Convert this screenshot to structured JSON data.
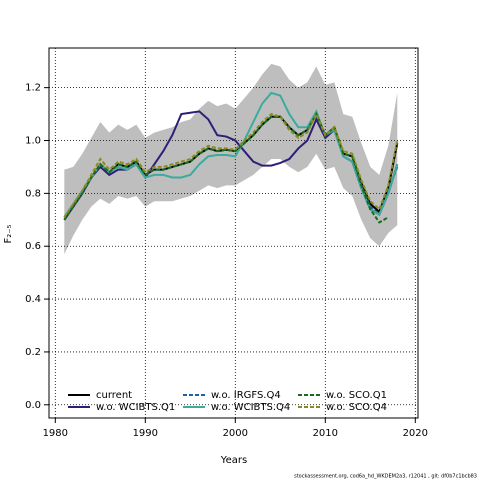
{
  "chart_data": {
    "type": "line",
    "x_label": "Years",
    "y_label": "F₂₋₅",
    "footer": "stockassessment.org, cod6a_hd_WKDEM2a3, r12041 , git: df0b7c1bcb83",
    "x": [
      1981,
      1982,
      1983,
      1984,
      1985,
      1986,
      1987,
      1988,
      1989,
      1990,
      1991,
      1992,
      1993,
      1994,
      1995,
      1996,
      1997,
      1998,
      1999,
      2000,
      2001,
      2002,
      2003,
      2004,
      2005,
      2006,
      2007,
      2008,
      2009,
      2010,
      2011,
      2012,
      2013,
      2014,
      2015,
      2016,
      2017,
      2018
    ],
    "band": {
      "color": "#bebebe",
      "upper": [
        0.89,
        0.9,
        0.95,
        1.01,
        1.07,
        1.03,
        1.06,
        1.04,
        1.06,
        1.01,
        1.03,
        1.04,
        1.05,
        1.07,
        1.08,
        1.12,
        1.15,
        1.13,
        1.14,
        1.12,
        1.16,
        1.2,
        1.25,
        1.29,
        1.28,
        1.23,
        1.2,
        1.22,
        1.28,
        1.21,
        1.22,
        1.1,
        1.09,
        0.99,
        0.9,
        0.87,
        0.98,
        1.18
      ],
      "lower": [
        0.57,
        0.64,
        0.7,
        0.75,
        0.78,
        0.76,
        0.79,
        0.78,
        0.79,
        0.75,
        0.77,
        0.77,
        0.77,
        0.78,
        0.79,
        0.81,
        0.83,
        0.82,
        0.83,
        0.83,
        0.85,
        0.87,
        0.9,
        0.93,
        0.93,
        0.9,
        0.88,
        0.9,
        0.95,
        0.89,
        0.9,
        0.82,
        0.79,
        0.7,
        0.63,
        0.6,
        0.65,
        0.68
      ]
    },
    "series": [
      {
        "name": "current",
        "color": "#000000",
        "linestyle": "solid",
        "values": [
          0.7,
          0.75,
          0.8,
          0.86,
          0.91,
          0.88,
          0.91,
          0.9,
          0.92,
          0.87,
          0.89,
          0.89,
          0.9,
          0.91,
          0.92,
          0.95,
          0.97,
          0.96,
          0.965,
          0.96,
          0.99,
          1.02,
          1.06,
          1.09,
          1.09,
          1.05,
          1.02,
          1.04,
          1.1,
          1.02,
          1.05,
          0.95,
          0.94,
          0.84,
          0.76,
          0.73,
          0.82,
          0.99
        ]
      },
      {
        "name": "w.o. WCIBTS.Q1",
        "color": "#2e1e78",
        "linestyle": "solid",
        "values": [
          0.7,
          0.75,
          0.8,
          0.86,
          0.9,
          0.87,
          0.89,
          0.89,
          0.91,
          0.86,
          0.91,
          0.96,
          1.02,
          1.1,
          1.105,
          1.11,
          1.08,
          1.02,
          1.015,
          1.0,
          0.96,
          0.92,
          0.905,
          0.905,
          0.915,
          0.93,
          0.97,
          1.0,
          1.08,
          1.01,
          1.04,
          0.94,
          0.92,
          0.82,
          0.74,
          0.72,
          0.8,
          0.91
        ]
      },
      {
        "name": "w.o. IRGFS.Q4",
        "color": "#1f5fa6",
        "linestyle": "dashed",
        "values": [
          0.7,
          0.75,
          0.8,
          0.86,
          0.91,
          0.88,
          0.91,
          0.9,
          0.92,
          0.87,
          0.89,
          0.89,
          0.9,
          0.91,
          0.92,
          0.95,
          0.97,
          0.96,
          0.965,
          0.96,
          0.99,
          1.02,
          1.06,
          1.09,
          1.09,
          1.05,
          1.02,
          1.04,
          1.1,
          1.02,
          1.05,
          0.95,
          0.94,
          0.83,
          0.75,
          0.72,
          0.81,
          0.9
        ]
      },
      {
        "name": "w.o. WCIBTS.Q4",
        "color": "#3aab9c",
        "linestyle": "solid",
        "values": [
          0.71,
          0.76,
          0.81,
          0.86,
          0.91,
          0.88,
          0.9,
          0.89,
          0.91,
          0.86,
          0.87,
          0.87,
          0.86,
          0.86,
          0.87,
          0.91,
          0.94,
          0.945,
          0.945,
          0.94,
          1.0,
          1.07,
          1.14,
          1.18,
          1.17,
          1.1,
          1.05,
          1.05,
          1.11,
          1.02,
          1.04,
          0.94,
          0.92,
          0.82,
          0.74,
          0.72,
          0.8,
          0.91
        ]
      },
      {
        "name": "w.o. SCO.Q1",
        "color": "#1a6b1a",
        "linestyle": "dashed",
        "values": [
          0.7,
          0.75,
          0.8,
          0.86,
          0.91,
          0.88,
          0.91,
          0.9,
          0.92,
          0.87,
          0.89,
          0.89,
          0.9,
          0.91,
          0.92,
          0.95,
          0.97,
          0.96,
          0.965,
          0.96,
          0.99,
          1.02,
          1.06,
          1.09,
          1.09,
          1.05,
          1.02,
          1.04,
          1.1,
          1.02,
          1.05,
          0.95,
          0.94,
          0.83,
          0.74,
          0.69,
          0.71,
          null
        ]
      },
      {
        "name": "w.o. SCO.Q4",
        "color": "#8c8c1e",
        "linestyle": "dashed",
        "values": [
          0.71,
          0.76,
          0.81,
          0.87,
          0.93,
          0.89,
          0.92,
          0.91,
          0.93,
          0.88,
          0.9,
          0.9,
          0.91,
          0.92,
          0.93,
          0.96,
          0.98,
          0.97,
          0.97,
          0.965,
          1.0,
          1.03,
          1.07,
          1.1,
          1.09,
          1.04,
          1.01,
          1.03,
          1.1,
          1.02,
          1.05,
          0.96,
          0.95,
          0.85,
          0.77,
          0.74,
          0.83,
          1.0
        ]
      }
    ],
    "xlim": [
      1979.3,
      2020.3
    ],
    "ylim": [
      -0.05,
      1.35
    ],
    "xticks": [
      1980,
      1990,
      2000,
      2010,
      2020
    ],
    "yticks": [
      {
        "value": 0,
        "label": "0.0"
      },
      {
        "value": 0.2,
        "label": "0.2"
      },
      {
        "value": 0.4,
        "label": "0.4"
      },
      {
        "value": 0.6,
        "label": "0.6"
      },
      {
        "value": 0.8,
        "label": "0.8"
      },
      {
        "value": 1,
        "label": "1.0"
      },
      {
        "value": 1.2,
        "label": "1.2"
      }
    ],
    "grid": true
  }
}
